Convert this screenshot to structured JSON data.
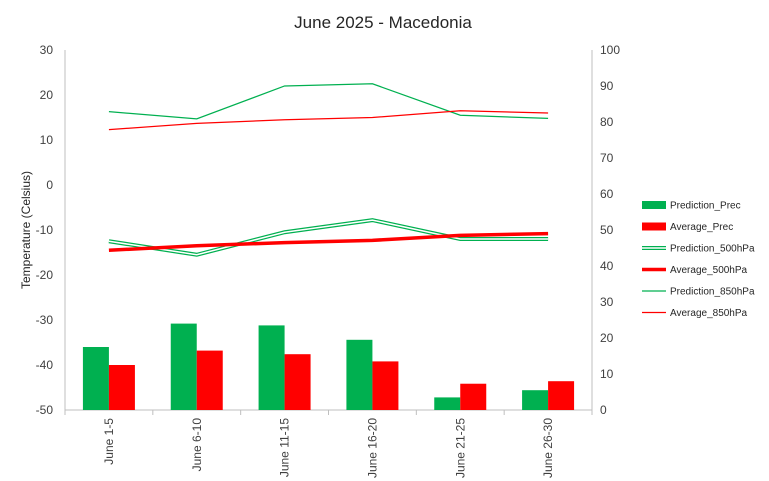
{
  "chart_data": {
    "type": "bar",
    "title": "June 2025 - Macedonia",
    "ylabel": "Temperature (Celsius)",
    "ylabel_right": "",
    "categories": [
      "June 1-5",
      "June 6-10",
      "June 11-15",
      "June 16-20",
      "June 21-25",
      "June 26-30"
    ],
    "ylim": [
      -50,
      30
    ],
    "y_ticks": [
      30,
      20,
      10,
      0,
      -10,
      -20,
      -30,
      -40,
      -50
    ],
    "ylim_right": [
      0,
      100
    ],
    "y_ticks_right": [
      100,
      90,
      80,
      70,
      60,
      50,
      40,
      30,
      20,
      10,
      0
    ],
    "grid": false,
    "legend_position": "right",
    "series": [
      {
        "name": "Prediction_Prec",
        "type": "bar",
        "axis": "right",
        "color": "#00b050",
        "values": [
          17.5,
          24,
          23.5,
          19.5,
          3.5,
          5.5
        ]
      },
      {
        "name": "Average_Prec",
        "type": "bar",
        "axis": "right",
        "color": "#ff0000",
        "values": [
          12.5,
          16.5,
          15.5,
          13.5,
          7.3,
          8
        ]
      },
      {
        "name": "Prediction_500hPa",
        "type": "line",
        "style": "double",
        "axis": "left",
        "color": "#00b050",
        "values": [
          -12.5,
          -15.5,
          -10.5,
          -7.8,
          -12,
          -12
        ]
      },
      {
        "name": "Average_500hPa",
        "type": "line",
        "style": "thick",
        "axis": "left",
        "color": "#ff0000",
        "values": [
          -14.5,
          -13.5,
          -12.8,
          -12.3,
          -11.2,
          -10.8
        ]
      },
      {
        "name": "Prediction_850hPa",
        "type": "line",
        "style": "thin",
        "axis": "left",
        "color": "#00b050",
        "values": [
          16.3,
          14.7,
          22,
          22.5,
          15.5,
          14.8
        ]
      },
      {
        "name": "Average_850hPa",
        "type": "line",
        "style": "thin",
        "axis": "left",
        "color": "#ff0000",
        "values": [
          12.3,
          13.7,
          14.5,
          15,
          16.5,
          16
        ]
      }
    ]
  }
}
